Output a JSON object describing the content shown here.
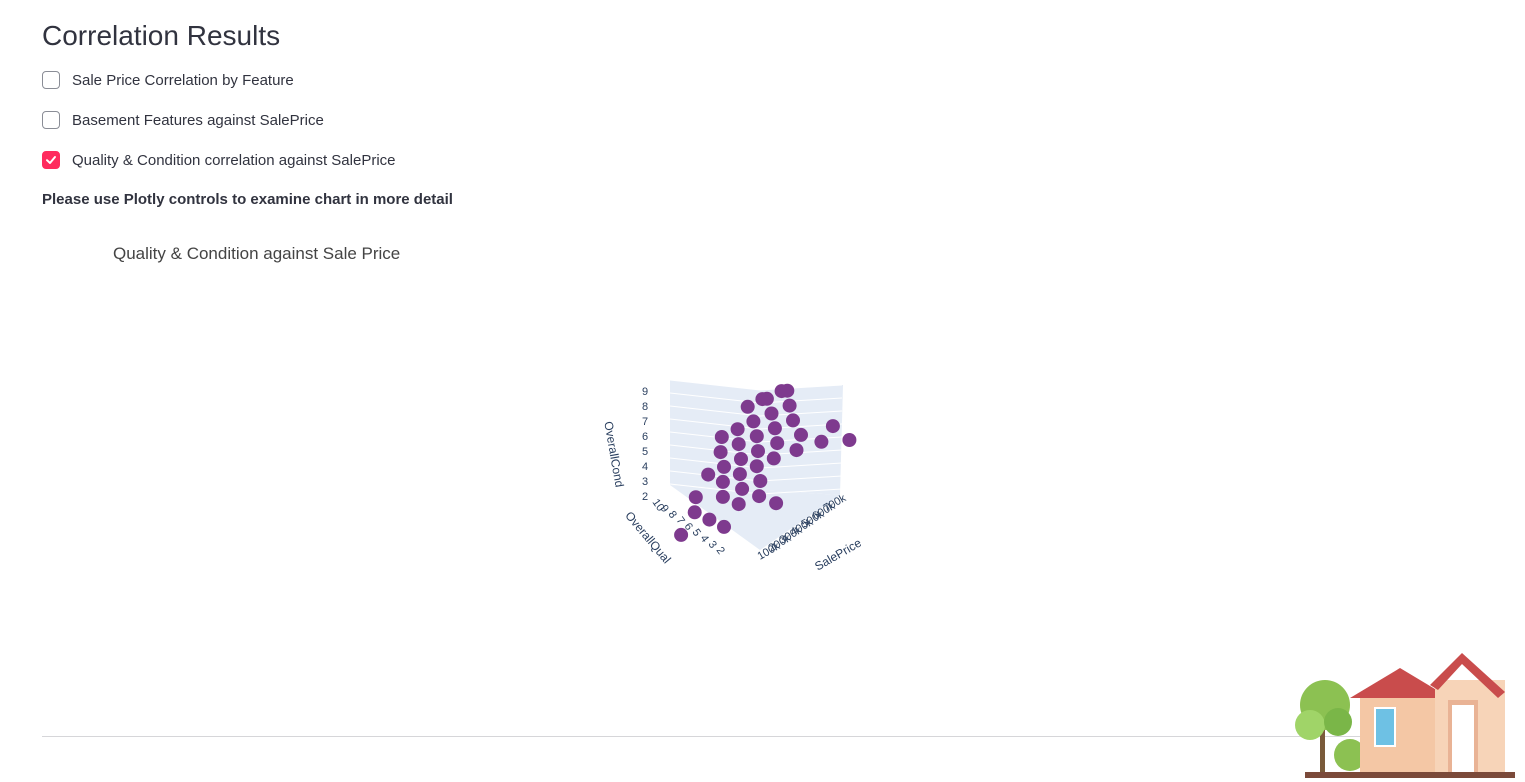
{
  "page": {
    "title": "Correlation Results",
    "note": "Please use Plotly controls to examine chart in more detail"
  },
  "checkboxes": [
    {
      "label": "Sale Price Correlation by Feature",
      "checked": false
    },
    {
      "label": "Basement Features against SalePrice",
      "checked": false
    },
    {
      "label": "Quality & Condition correlation against SalePrice",
      "checked": true
    }
  ],
  "colors": {
    "accent": "#ff2b5e",
    "marker": "#7e3a8e",
    "scene_bg": "#e5ecf6"
  },
  "chart_data": {
    "type": "scatter",
    "title": "Quality & Condition against Sale Price",
    "x_axis": {
      "label": "SalePrice",
      "ticks": [
        "100k",
        "200k",
        "300k",
        "400k",
        "500k",
        "600k",
        "700k"
      ]
    },
    "y_axis": {
      "label": "OverallQual",
      "ticks": [
        "10",
        "9",
        "8",
        "7",
        "6",
        "5",
        "4",
        "3",
        "2"
      ]
    },
    "z_axis": {
      "label": "OverallCond",
      "ticks": [
        "2",
        "3",
        "4",
        "5",
        "6",
        "7",
        "8",
        "9"
      ]
    },
    "points": [
      [
        150000,
        7,
        9
      ],
      [
        180000,
        8,
        9
      ],
      [
        220000,
        8,
        9
      ],
      [
        250000,
        9,
        9
      ],
      [
        300000,
        9,
        9
      ],
      [
        120000,
        5,
        8
      ],
      [
        160000,
        6,
        8
      ],
      [
        200000,
        7,
        8
      ],
      [
        260000,
        8,
        8
      ],
      [
        320000,
        9,
        8
      ],
      [
        110000,
        5,
        7
      ],
      [
        170000,
        6,
        7
      ],
      [
        230000,
        7,
        7
      ],
      [
        290000,
        8,
        7
      ],
      [
        350000,
        9,
        7
      ],
      [
        100000,
        4,
        6
      ],
      [
        140000,
        5,
        6
      ],
      [
        190000,
        6,
        6
      ],
      [
        240000,
        7,
        6
      ],
      [
        310000,
        8,
        6
      ],
      [
        420000,
        9,
        6
      ],
      [
        600000,
        10,
        6
      ],
      [
        90000,
        3,
        5
      ],
      [
        130000,
        5,
        5
      ],
      [
        180000,
        6,
        5
      ],
      [
        230000,
        7,
        5
      ],
      [
        280000,
        8,
        5
      ],
      [
        380000,
        9,
        5
      ],
      [
        500000,
        10,
        5
      ],
      [
        745000,
        10,
        5
      ],
      [
        80000,
        3,
        4
      ],
      [
        130000,
        5,
        4
      ],
      [
        200000,
        6,
        4
      ],
      [
        260000,
        7,
        4
      ],
      [
        60000,
        2,
        3
      ],
      [
        110000,
        4,
        3
      ],
      [
        170000,
        6,
        3
      ],
      [
        250000,
        7,
        3
      ],
      [
        140000,
        5,
        2
      ],
      [
        300000,
        8,
        2
      ]
    ]
  }
}
